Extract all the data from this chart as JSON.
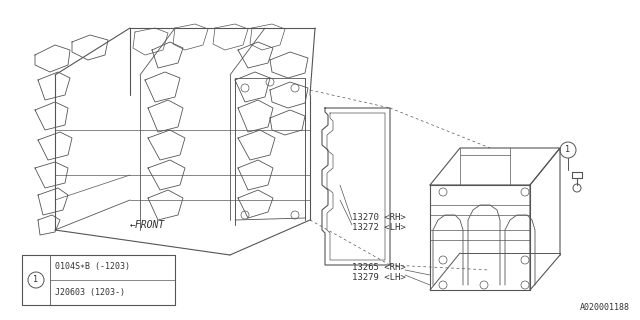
{
  "background_color": "#ffffff",
  "line_color": "#555555",
  "text_color": "#333333",
  "diagram_id": "A020001188",
  "label_13270": "13270 <RH>",
  "label_13272": "13272 <LH>",
  "label_13265": "13265 <RH>",
  "label_13279": "13279 <LH>",
  "label_front": "FRONT",
  "legend_row1": "0104S∗B (-1203)",
  "legend_row2": "J20603 (1203-)",
  "legend_num": "1",
  "callout_num": "1"
}
